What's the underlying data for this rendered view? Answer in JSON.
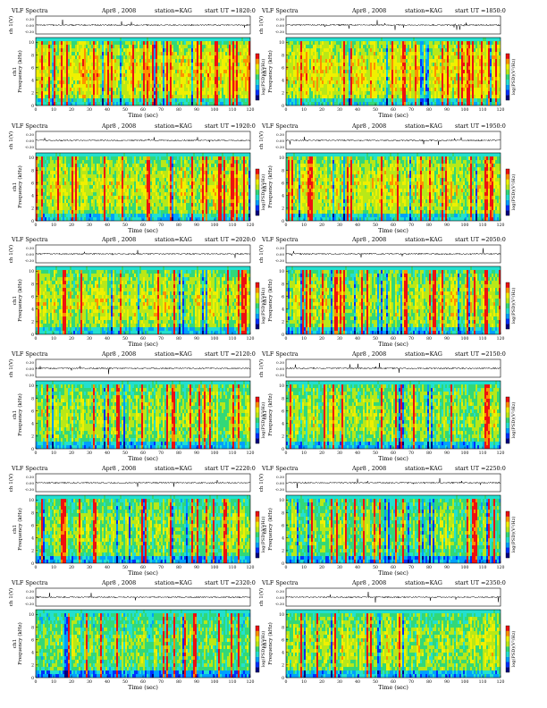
{
  "header": {
    "title": "VLF Spectra",
    "date": "Apr8 , 2008",
    "station": "station=KAG",
    "start_prefix": "start  UT  ="
  },
  "axis_text": {
    "ts_ylabel": "ch 1(V)",
    "spec_ylabel_1": "ch1",
    "spec_ylabel_2": "Frequency  (kHz)",
    "xlabel": "Time  (sec)",
    "cbar_label": "log(PSD)(V²/Hz)"
  },
  "colors": {
    "spectro_scale": [
      "#000080",
      "#0030ff",
      "#00a0ff",
      "#22e0d0",
      "#32d878",
      "#b8e818",
      "#f0f000",
      "#ff9000",
      "#ee1010",
      "#ffffff"
    ],
    "trace": "#000000"
  },
  "chart_data": [
    {
      "type": "heatmap",
      "panel": "panel-1",
      "start_ut": "1820:0",
      "xlim": [
        0,
        120
      ],
      "ylim": [
        0,
        10
      ],
      "ts_ylim": [
        -0.3,
        0.3
      ],
      "ts_ticks": [
        "0.30",
        "0.00",
        "-0.30"
      ],
      "x_ticks": [
        0,
        10,
        20,
        30,
        40,
        50,
        60,
        70,
        80,
        90,
        100,
        110,
        120
      ],
      "y_ticks": [
        0,
        2,
        4,
        6,
        8,
        10
      ],
      "band_top_khz": 10,
      "background_level": 0.38,
      "activity": 0.9,
      "seed": 11
    },
    {
      "type": "heatmap",
      "panel": "panel-2",
      "start_ut": "1850:0",
      "xlim": [
        0,
        120
      ],
      "ylim": [
        0,
        10
      ],
      "ts_ylim": [
        -0.3,
        0.3
      ],
      "ts_ticks": [
        "0.30",
        "0.00",
        "-0.30"
      ],
      "x_ticks": [
        0,
        10,
        20,
        30,
        40,
        50,
        60,
        70,
        80,
        90,
        100,
        110,
        120
      ],
      "y_ticks": [
        0,
        2,
        4,
        6,
        8,
        10
      ],
      "band_top_khz": 10,
      "background_level": 0.38,
      "activity": 0.88,
      "seed": 23
    },
    {
      "type": "heatmap",
      "panel": "panel-3",
      "start_ut": "1920:0",
      "xlim": [
        0,
        120
      ],
      "ylim": [
        0,
        10
      ],
      "ts_ylim": [
        -0.3,
        0.3
      ],
      "ts_ticks": [
        "0.30",
        "0.00",
        "-0.30"
      ],
      "x_ticks": [
        0,
        10,
        20,
        30,
        40,
        50,
        60,
        70,
        80,
        90,
        100,
        110,
        120
      ],
      "y_ticks": [
        0,
        2,
        4,
        6,
        8,
        10
      ],
      "band_top_khz": 10,
      "background_level": 0.36,
      "activity": 0.8,
      "seed": 37
    },
    {
      "type": "heatmap",
      "panel": "panel-4",
      "start_ut": "1950:0",
      "xlim": [
        0,
        120
      ],
      "ylim": [
        0,
        10
      ],
      "ts_ylim": [
        -0.3,
        0.3
      ],
      "ts_ticks": [
        "0.30",
        "0.00",
        "-0.30"
      ],
      "x_ticks": [
        0,
        10,
        20,
        30,
        40,
        50,
        60,
        70,
        80,
        90,
        100,
        110,
        120
      ],
      "y_ticks": [
        0,
        2,
        4,
        6,
        8,
        10
      ],
      "band_top_khz": 10,
      "background_level": 0.36,
      "activity": 0.8,
      "seed": 41
    },
    {
      "type": "heatmap",
      "panel": "panel-5",
      "start_ut": "2020:0",
      "xlim": [
        0,
        120
      ],
      "ylim": [
        0,
        10
      ],
      "ts_ylim": [
        -0.3,
        0.3
      ],
      "ts_ticks": [
        "0.30",
        "0.00",
        "-0.30"
      ],
      "x_ticks": [
        0,
        10,
        20,
        30,
        40,
        50,
        60,
        70,
        80,
        90,
        100,
        110,
        120
      ],
      "y_ticks": [
        0,
        2,
        4,
        6,
        8,
        10
      ],
      "band_top_khz": 10,
      "background_level": 0.35,
      "activity": 0.75,
      "seed": 53
    },
    {
      "type": "heatmap",
      "panel": "panel-6",
      "start_ut": "2050:0",
      "xlim": [
        0,
        120
      ],
      "ylim": [
        0,
        10
      ],
      "ts_ylim": [
        -0.3,
        0.3
      ],
      "ts_ticks": [
        "0.30",
        "0.00",
        "-0.30"
      ],
      "x_ticks": [
        0,
        10,
        20,
        30,
        40,
        50,
        60,
        70,
        80,
        90,
        100,
        110,
        120
      ],
      "y_ticks": [
        0,
        2,
        4,
        6,
        8,
        10
      ],
      "band_top_khz": 10,
      "background_level": 0.35,
      "activity": 0.72,
      "seed": 67
    },
    {
      "type": "heatmap",
      "panel": "panel-7",
      "start_ut": "2120:0",
      "xlim": [
        0,
        120
      ],
      "ylim": [
        0,
        10
      ],
      "ts_ylim": [
        -0.3,
        0.3
      ],
      "ts_ticks": [
        "0.30",
        "0.00",
        "-0.30"
      ],
      "x_ticks": [
        0,
        10,
        20,
        30,
        40,
        50,
        60,
        70,
        80,
        90,
        100,
        110,
        120
      ],
      "y_ticks": [
        0,
        2,
        4,
        6,
        8,
        10
      ],
      "band_top_khz": 10,
      "background_level": 0.34,
      "activity": 0.62,
      "seed": 79
    },
    {
      "type": "heatmap",
      "panel": "panel-8",
      "start_ut": "2150:0",
      "xlim": [
        0,
        120
      ],
      "ylim": [
        0,
        10
      ],
      "ts_ylim": [
        -0.3,
        0.3
      ],
      "ts_ticks": [
        "0.30",
        "0.00",
        "-0.30"
      ],
      "x_ticks": [
        0,
        10,
        20,
        30,
        40,
        50,
        60,
        70,
        80,
        90,
        100,
        110,
        120
      ],
      "y_ticks": [
        0,
        2,
        4,
        6,
        8,
        10
      ],
      "band_top_khz": 10,
      "background_level": 0.34,
      "activity": 0.62,
      "seed": 83
    },
    {
      "type": "heatmap",
      "panel": "panel-9",
      "start_ut": "2220:0",
      "xlim": [
        0,
        120
      ],
      "ylim": [
        0,
        10
      ],
      "ts_ylim": [
        -0.3,
        0.3
      ],
      "ts_ticks": [
        "0.30",
        "0.00",
        "-0.30"
      ],
      "x_ticks": [
        0,
        10,
        20,
        30,
        40,
        50,
        60,
        70,
        80,
        90,
        100,
        110,
        120
      ],
      "y_ticks": [
        0,
        2,
        4,
        6,
        8,
        10
      ],
      "band_top_khz": 10,
      "background_level": 0.32,
      "activity": 0.55,
      "seed": 97
    },
    {
      "type": "heatmap",
      "panel": "panel-10",
      "start_ut": "2250:0",
      "xlim": [
        0,
        120
      ],
      "ylim": [
        0,
        10
      ],
      "ts_ylim": [
        -0.3,
        0.3
      ],
      "ts_ticks": [
        "0.30",
        "0.00",
        "-0.30"
      ],
      "x_ticks": [
        0,
        10,
        20,
        30,
        40,
        50,
        60,
        70,
        80,
        90,
        100,
        110,
        120
      ],
      "y_ticks": [
        0,
        2,
        4,
        6,
        8,
        10
      ],
      "band_top_khz": 10,
      "background_level": 0.32,
      "activity": 0.52,
      "seed": 101
    },
    {
      "type": "heatmap",
      "panel": "panel-11",
      "start_ut": "2320:0",
      "xlim": [
        0,
        120
      ],
      "ylim": [
        0,
        10
      ],
      "ts_ylim": [
        -0.3,
        0.3
      ],
      "ts_ticks": [
        "0.30",
        "0.00",
        "-0.30"
      ],
      "x_ticks": [
        0,
        10,
        20,
        30,
        40,
        50,
        60,
        70,
        80,
        90,
        100,
        110,
        120
      ],
      "y_ticks": [
        0,
        2,
        4,
        6,
        8,
        10
      ],
      "band_top_khz": 10,
      "background_level": 0.3,
      "activity": 0.5,
      "seed": 113
    },
    {
      "type": "heatmap",
      "panel": "panel-12",
      "start_ut": "2350:0",
      "xlim": [
        0,
        120
      ],
      "ylim": [
        0,
        10
      ],
      "ts_ylim": [
        -0.3,
        0.3
      ],
      "ts_ticks": [
        "0.30",
        "0.00",
        "-0.30"
      ],
      "x_ticks": [
        0,
        10,
        20,
        30,
        40,
        50,
        60,
        70,
        80,
        90,
        100,
        110,
        120
      ],
      "y_ticks": [
        0,
        2,
        4,
        6,
        8,
        10
      ],
      "band_top_khz": 10,
      "background_level": 0.34,
      "activity": 0.66,
      "seed": 127
    }
  ]
}
